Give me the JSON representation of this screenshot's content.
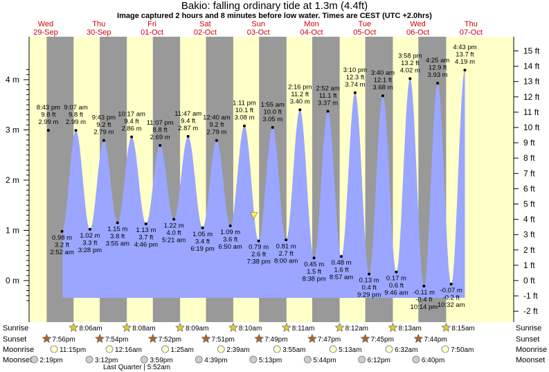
{
  "header": {
    "title": "Bakio: falling  ordinary tide at 1.3m (4.4ft)",
    "subtitle": "Image captured 2 hours and 8 minutes before low water. Times are CEST (UTC +2.0hrs)"
  },
  "chart_data": {
    "type": "area",
    "y_left_unit": "m",
    "y_right_unit": "ft",
    "y_left_ticks": [
      "0 m",
      "1 m",
      "2 m",
      "3 m",
      "4 m"
    ],
    "y_right_ticks": [
      "-2 ft",
      "-1 ft",
      "0 ft",
      "1 ft",
      "2 ft",
      "3 ft",
      "4 ft",
      "5 ft",
      "6 ft",
      "7 ft",
      "8 ft",
      "9 ft",
      "10 ft",
      "11 ft",
      "12 ft",
      "13 ft",
      "14 ft",
      "15 ft"
    ],
    "days": [
      {
        "name": "Wed",
        "date": "29-Sep"
      },
      {
        "name": "Thu",
        "date": "30-Sep"
      },
      {
        "name": "Fri",
        "date": "01-Oct"
      },
      {
        "name": "Sat",
        "date": "02-Oct"
      },
      {
        "name": "Sun",
        "date": "03-Oct"
      },
      {
        "name": "Mon",
        "date": "04-Oct"
      },
      {
        "name": "Tue",
        "date": "05-Oct"
      },
      {
        "name": "Wed",
        "date": "06-Oct"
      },
      {
        "name": "Thu",
        "date": "07-Oct"
      }
    ],
    "nights": [
      {
        "start": "2021-09-29T19:56",
        "end": "2021-09-30T08:06"
      },
      {
        "start": "2021-09-30T19:54",
        "end": "2021-10-01T08:08"
      },
      {
        "start": "2021-10-01T19:52",
        "end": "2021-10-02T08:09"
      },
      {
        "start": "2021-10-02T19:51",
        "end": "2021-10-03T08:10"
      },
      {
        "start": "2021-10-03T19:49",
        "end": "2021-10-04T08:11"
      },
      {
        "start": "2021-10-04T19:47",
        "end": "2021-10-05T08:12"
      },
      {
        "start": "2021-10-05T19:45",
        "end": "2021-10-06T08:13"
      },
      {
        "start": "2021-10-06T19:44",
        "end": "2021-10-07T08:15"
      }
    ],
    "tides": [
      {
        "type": "high",
        "datetime": "2021-09-29T20:43",
        "time": "8:43 pm",
        "ft": "9.8 ft",
        "m": 2.99,
        "m_label": "2.99 m"
      },
      {
        "type": "low",
        "datetime": "2021-09-30T02:52",
        "time": "2:52 am",
        "ft": "3.2 ft",
        "m": 0.98,
        "m_label": "0.98 m"
      },
      {
        "type": "high",
        "datetime": "2021-09-30T09:07",
        "time": "9:07 am",
        "ft": "9.8 ft",
        "m": 2.99,
        "m_label": "2.99 m"
      },
      {
        "type": "low",
        "datetime": "2021-09-30T15:28",
        "time": "3:28 pm",
        "ft": "3.3 ft",
        "m": 1.02,
        "m_label": "1.02 m"
      },
      {
        "type": "high",
        "datetime": "2021-09-30T21:43",
        "time": "9:43 pm",
        "ft": "9.2 ft",
        "m": 2.79,
        "m_label": "2.79 m"
      },
      {
        "type": "low",
        "datetime": "2021-10-01T03:55",
        "time": "3:55 am",
        "ft": "3.8 ft",
        "m": 1.15,
        "m_label": "1.15 m"
      },
      {
        "type": "high",
        "datetime": "2021-10-01T10:17",
        "time": "10:17 am",
        "ft": "9.4 ft",
        "m": 2.86,
        "m_label": "2.86 m"
      },
      {
        "type": "low",
        "datetime": "2021-10-01T16:46",
        "time": "4:46 pm",
        "ft": "3.7 ft",
        "m": 1.13,
        "m_label": "1.13 m"
      },
      {
        "type": "high",
        "datetime": "2021-10-01T23:07",
        "time": "11:07 pm",
        "ft": "8.8 ft",
        "m": 2.69,
        "m_label": "2.69 m"
      },
      {
        "type": "low",
        "datetime": "2021-10-02T05:21",
        "time": "5:21 am",
        "ft": "4.0 ft",
        "m": 1.22,
        "m_label": "1.22 m"
      },
      {
        "type": "high",
        "datetime": "2021-10-02T11:47",
        "time": "11:47 am",
        "ft": "9.4 ft",
        "m": 2.87,
        "m_label": "2.87 m"
      },
      {
        "type": "low",
        "datetime": "2021-10-02T18:19",
        "time": "6:19 pm",
        "ft": "3.4 ft",
        "m": 1.05,
        "m_label": "1.05 m"
      },
      {
        "type": "high",
        "datetime": "2021-10-03T00:40",
        "time": "12:40 am",
        "ft": "9.2 ft",
        "m": 2.79,
        "m_label": "2.79 m"
      },
      {
        "type": "low",
        "datetime": "2021-10-03T06:50",
        "time": "6:50 am",
        "ft": "3.6 ft",
        "m": 1.09,
        "m_label": "1.09 m"
      },
      {
        "type": "high",
        "datetime": "2021-10-03T13:11",
        "time": "1:11 pm",
        "ft": "10.1 ft",
        "m": 3.08,
        "m_label": "3.08 m"
      },
      {
        "type": "low",
        "datetime": "2021-10-03T19:38",
        "time": "7:38 pm",
        "ft": "2.6 ft",
        "m": 0.79,
        "m_label": "0.79 m"
      },
      {
        "type": "high",
        "datetime": "2021-10-04T01:55",
        "time": "1:55 am",
        "ft": "10.0 ft",
        "m": 3.05,
        "m_label": "3.05 m"
      },
      {
        "type": "low",
        "datetime": "2021-10-04T08:00",
        "time": "8:00 am",
        "ft": "2.7 ft",
        "m": 0.81,
        "m_label": "0.81 m"
      },
      {
        "type": "high",
        "datetime": "2021-10-04T14:16",
        "time": "2:16 pm",
        "ft": "11.2 ft",
        "m": 3.4,
        "m_label": "3.40 m"
      },
      {
        "type": "low",
        "datetime": "2021-10-04T20:38",
        "time": "8:38 pm",
        "ft": "1.5 ft",
        "m": 0.45,
        "m_label": "0.45 m"
      },
      {
        "type": "high",
        "datetime": "2021-10-05T02:52",
        "time": "2:52 am",
        "ft": "11.1 ft",
        "m": 3.37,
        "m_label": "3.37 m"
      },
      {
        "type": "low",
        "datetime": "2021-10-05T08:57",
        "time": "8:57 am",
        "ft": "1.6 ft",
        "m": 0.48,
        "m_label": "0.48 m"
      },
      {
        "type": "high",
        "datetime": "2021-10-05T15:10",
        "time": "3:10 pm",
        "ft": "12.3 ft",
        "m": 3.74,
        "m_label": "3.74 m"
      },
      {
        "type": "low",
        "datetime": "2021-10-05T21:29",
        "time": "9:29 pm",
        "ft": "0.4 ft",
        "m": 0.13,
        "m_label": "0.13 m"
      },
      {
        "type": "high",
        "datetime": "2021-10-06T03:40",
        "time": "3:40 am",
        "ft": "12.1 ft",
        "m": 3.68,
        "m_label": "3.68 m"
      },
      {
        "type": "low",
        "datetime": "2021-10-06T09:46",
        "time": "9:46 am",
        "ft": "0.6 ft",
        "m": 0.17,
        "m_label": "0.17 m"
      },
      {
        "type": "high",
        "datetime": "2021-10-06T15:58",
        "time": "3:58 pm",
        "ft": "13.2 ft",
        "m": 4.02,
        "m_label": "4.02 m"
      },
      {
        "type": "low",
        "datetime": "2021-10-06T22:14",
        "time": "10:14 pm",
        "ft": "-0.4 ft",
        "m": -0.11,
        "m_label": "-0.11 m"
      },
      {
        "type": "high",
        "datetime": "2021-10-07T04:25",
        "time": "4:25 am",
        "ft": "12.9 ft",
        "m": 3.93,
        "m_label": "3.93 m"
      },
      {
        "type": "low",
        "datetime": "2021-10-07T10:32",
        "time": "10:32 am",
        "ft": "-0.2 ft",
        "m": -0.07,
        "m_label": "-0.07 m"
      },
      {
        "type": "high",
        "datetime": "2021-10-07T16:43",
        "time": "4:43 pm",
        "ft": "13.7 ft",
        "m": 4.19,
        "m_label": "4.19 m"
      }
    ],
    "current": {
      "datetime": "2021-10-03T17:30",
      "m": 1.3
    },
    "sunrise": [
      {
        "datetime": "2021-09-30T08:06",
        "label": "8:06am"
      },
      {
        "datetime": "2021-10-01T08:08",
        "label": "8:08am"
      },
      {
        "datetime": "2021-10-02T08:09",
        "label": "8:09am"
      },
      {
        "datetime": "2021-10-03T08:10",
        "label": "8:10am"
      },
      {
        "datetime": "2021-10-04T08:11",
        "label": "8:11am"
      },
      {
        "datetime": "2021-10-05T08:12",
        "label": "8:12am"
      },
      {
        "datetime": "2021-10-06T08:13",
        "label": "8:13am"
      },
      {
        "datetime": "2021-10-07T08:15",
        "label": "8:15am"
      }
    ],
    "sunset": [
      {
        "datetime": "2021-09-29T19:56",
        "label": "7:56pm"
      },
      {
        "datetime": "2021-09-30T19:54",
        "label": "7:54pm"
      },
      {
        "datetime": "2021-10-01T19:52",
        "label": "7:52pm"
      },
      {
        "datetime": "2021-10-02T19:51",
        "label": "7:51pm"
      },
      {
        "datetime": "2021-10-03T19:49",
        "label": "7:49pm"
      },
      {
        "datetime": "2021-10-04T19:47",
        "label": "7:47pm"
      },
      {
        "datetime": "2021-10-05T19:45",
        "label": "7:45pm"
      },
      {
        "datetime": "2021-10-06T19:44",
        "label": "7:44pm"
      }
    ],
    "moonrise": [
      {
        "datetime": "2021-09-29T23:15",
        "label": "11:15pm"
      },
      {
        "datetime": "2021-10-01T00:16",
        "label": "12:16am"
      },
      {
        "datetime": "2021-10-02T01:25",
        "label": "1:25am"
      },
      {
        "datetime": "2021-10-03T02:39",
        "label": "2:39am"
      },
      {
        "datetime": "2021-10-04T03:55",
        "label": "3:55am"
      },
      {
        "datetime": "2021-10-05T05:13",
        "label": "5:13am"
      },
      {
        "datetime": "2021-10-06T06:32",
        "label": "6:32am"
      },
      {
        "datetime": "2021-10-07T07:50",
        "label": "7:50am"
      }
    ],
    "moonset": [
      {
        "datetime": "2021-09-29T14:19",
        "label": "2:19pm"
      },
      {
        "datetime": "2021-09-30T15:12",
        "label": "3:12pm"
      },
      {
        "datetime": "2021-10-01T15:59",
        "label": "3:59pm"
      },
      {
        "datetime": "2021-10-02T16:39",
        "label": "4:39pm"
      },
      {
        "datetime": "2021-10-03T17:13",
        "label": "5:13pm"
      },
      {
        "datetime": "2021-10-04T17:44",
        "label": "5:44pm"
      },
      {
        "datetime": "2021-10-05T18:12",
        "label": "6:12pm"
      },
      {
        "datetime": "2021-10-06T18:40",
        "label": "6:40pm"
      }
    ],
    "moon_phase_note": {
      "datetime": "2021-09-29T05:52",
      "label": "Last Quarter | 5:52am"
    },
    "row_labels": {
      "sunrise": "Sunrise",
      "sunset": "Sunset",
      "moonrise": "Moonrise",
      "moonset": "Moonset"
    },
    "colors": {
      "water": "#9aa6ff",
      "day": "#ffffc8",
      "night": "#999999",
      "day_label": "#cc0000",
      "sun_star": "#ddcc33",
      "sunset_star": "#aa6633",
      "moonrise": "#ffffcc",
      "moonset": "#cccccc",
      "marker": "#ffff33"
    }
  }
}
